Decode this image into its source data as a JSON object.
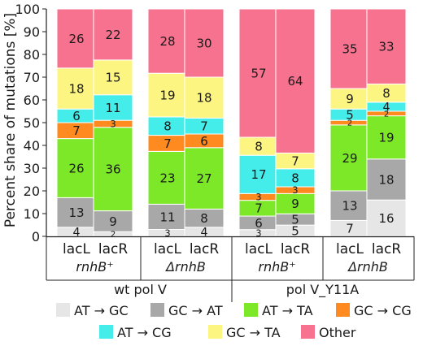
{
  "chart_data": {
    "type": "bar",
    "stacked": true,
    "ylabel": "Percent share of mutations [%]",
    "ylim": [
      0,
      100
    ],
    "yticks": [
      0,
      10,
      20,
      30,
      40,
      50,
      60,
      70,
      80,
      90,
      100
    ],
    "categories": [
      "lacL",
      "lacR",
      "lacL",
      "lacR",
      "lacL",
      "lacR",
      "lacL",
      "lacR"
    ],
    "groups": [
      {
        "label": "rnhB⁺",
        "span": [
          0,
          1
        ]
      },
      {
        "label": "ΔrnhB",
        "span": [
          2,
          3
        ]
      },
      {
        "label": "rnhB⁺",
        "span": [
          4,
          5
        ]
      },
      {
        "label": "ΔrnhB",
        "span": [
          6,
          7
        ]
      }
    ],
    "supergroups": [
      {
        "label": "wt pol V",
        "span": [
          0,
          3
        ]
      },
      {
        "label": "pol V_Y11A",
        "span": [
          4,
          7
        ]
      }
    ],
    "series": [
      {
        "name": "AT → GC",
        "color": "#e6e6e6",
        "values": [
          4,
          2,
          3,
          4,
          3,
          5,
          7,
          16
        ],
        "labels": [
          "4",
          "2",
          "3",
          "4",
          "3",
          "5",
          "7",
          "16"
        ]
      },
      {
        "name": "GC → AT",
        "color": "#a8a8a8",
        "values": [
          13,
          9,
          11,
          8,
          6,
          5,
          13,
          18
        ],
        "labels": [
          "13",
          "9",
          "11",
          "8",
          "6",
          "5",
          "13",
          "18"
        ]
      },
      {
        "name": "AT → TA",
        "color": "#7ce827",
        "values": [
          26,
          36,
          23,
          27,
          7,
          9,
          29,
          19
        ],
        "labels": [
          "26",
          "36",
          "23",
          "27",
          "7",
          "9",
          "29",
          "19"
        ]
      },
      {
        "name": "GC → CG",
        "color": "#ff8a1f",
        "values": [
          7,
          3,
          7,
          6,
          3,
          3,
          2,
          2
        ],
        "labels": [
          "7",
          "3",
          "7",
          "6",
          "3",
          "3",
          "2",
          "2"
        ]
      },
      {
        "name": "AT → CG",
        "color": "#44ecea",
        "values": [
          6,
          11,
          8,
          7,
          17,
          8,
          5,
          4
        ],
        "labels": [
          "6",
          "11",
          "8",
          "7",
          "17",
          "8",
          "5",
          "4"
        ]
      },
      {
        "name": "GC → TA",
        "color": "#fdf582",
        "values": [
          18,
          15,
          19,
          18,
          8,
          7,
          9,
          8
        ],
        "labels": [
          "18",
          "15",
          "19",
          "18",
          "8",
          "7",
          "9",
          "8"
        ]
      },
      {
        "name": "Other",
        "color": "#f7728e",
        "values": [
          26,
          22,
          28,
          30,
          57,
          64,
          35,
          33
        ],
        "labels": [
          "26",
          "22",
          "28",
          "30",
          "57",
          "64",
          "35",
          "33"
        ]
      }
    ],
    "grid": false,
    "legend": "bottom"
  }
}
